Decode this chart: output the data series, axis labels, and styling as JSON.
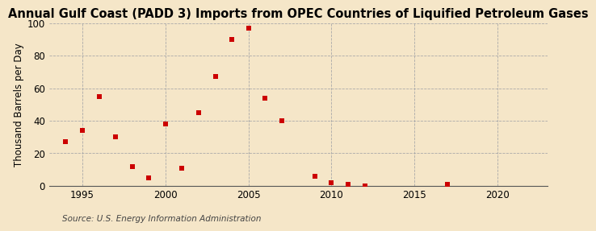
{
  "title": "Annual Gulf Coast (PADD 3) Imports from OPEC Countries of Liquified Petroleum Gases",
  "ylabel": "Thousand Barrels per Day",
  "source": "Source: U.S. Energy Information Administration",
  "background_color": "#f5e6c8",
  "x_data": [
    1994,
    1995,
    1996,
    1997,
    1998,
    1999,
    2000,
    2001,
    2002,
    2003,
    2004,
    2005,
    2006,
    2007,
    2009,
    2010,
    2011,
    2012,
    2017
  ],
  "y_data": [
    27,
    34,
    55,
    30,
    12,
    5,
    38,
    11,
    45,
    67,
    90,
    97,
    54,
    40,
    6,
    2,
    1,
    0,
    1
  ],
  "marker_color": "#cc0000",
  "marker_size": 25,
  "xlim": [
    1993,
    2023
  ],
  "ylim": [
    0,
    100
  ],
  "xticks": [
    1995,
    2000,
    2005,
    2010,
    2015,
    2020
  ],
  "yticks": [
    0,
    20,
    40,
    60,
    80,
    100
  ],
  "grid_color": "#aaaaaa",
  "title_fontsize": 10.5,
  "label_fontsize": 8.5,
  "tick_fontsize": 8.5,
  "source_fontsize": 7.5
}
